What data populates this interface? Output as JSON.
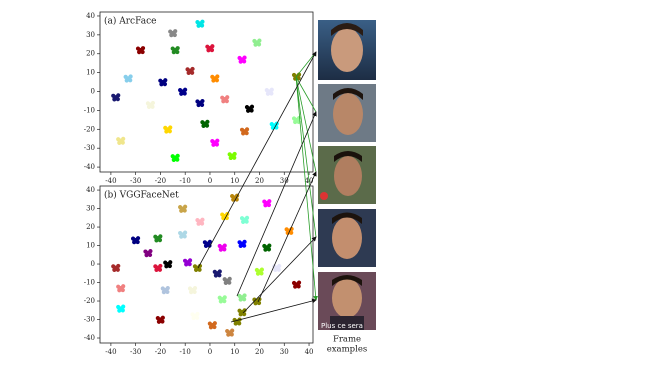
{
  "chart_data": [
    {
      "type": "scatter",
      "title": "(a) ArcFace",
      "x": [
        -15,
        -4,
        -28,
        -14,
        0,
        19,
        13,
        -8,
        -33,
        -19,
        2,
        -11,
        24,
        35,
        -38,
        -24,
        -4,
        6,
        16,
        35,
        -17,
        -2,
        14,
        26,
        -36,
        2,
        -14,
        9
      ],
      "values": [
        31,
        36,
        22,
        22,
        23,
        26,
        17,
        11,
        7,
        5,
        7,
        0,
        0,
        8,
        -3,
        -7,
        -6,
        -4,
        -9,
        -15,
        -20,
        -17,
        -21,
        -18,
        -26,
        -27,
        -35,
        -34
      ],
      "colors": [
        "#888888",
        "#00e5e5",
        "#8b0000",
        "#228b22",
        "#dc143c",
        "#90ee90",
        "#ff00ff",
        "#a52a2a",
        "#87ceeb",
        "#000080",
        "#ff8c00",
        "#00008b",
        "#e6e6fa",
        "#808000",
        "#191970",
        "#f5f5dc",
        "#000080",
        "#f08080",
        "#000000",
        "#98fb98",
        "#ffd700",
        "#006400",
        "#d2691e",
        "#00ffff",
        "#f0e68c",
        "#ff00ff",
        "#00ff00",
        "#7cfc00"
      ],
      "xlim": [
        -44.4,
        41.6
      ],
      "ylim": [
        -42.6,
        42.1
      ],
      "xticks": [
        -40,
        -30,
        -20,
        -10,
        0,
        10,
        20,
        30,
        40
      ],
      "yticks": [
        -40,
        -30,
        -20,
        -10,
        0,
        10,
        20,
        30,
        40
      ]
    },
    {
      "type": "scatter",
      "title": "(b) VGGFaceNet",
      "x": [
        -11,
        10,
        23,
        6,
        14,
        32,
        -4,
        -11,
        -30,
        -21,
        -25,
        -1,
        13,
        23,
        5,
        -17,
        -9,
        -5,
        20,
        27,
        3,
        -38,
        -21,
        35,
        7,
        -36,
        -18,
        -7,
        5,
        13,
        -36,
        -20,
        -6,
        1,
        8,
        19,
        13,
        11
      ],
      "values": [
        30,
        36,
        33,
        26,
        24,
        18,
        23,
        16,
        13,
        14,
        6,
        11,
        11,
        9,
        9,
        0,
        1,
        -2,
        -4,
        -2,
        -5,
        -2,
        -2,
        -11,
        -9,
        -13,
        -14,
        -14,
        -19,
        -18,
        -24,
        -30,
        -28,
        -33,
        -37,
        -20,
        -26,
        -31
      ],
      "colors": [
        "#c9a54a",
        "#b8860b",
        "#ff00ff",
        "#ffd700",
        "#7fffd4",
        "#ff8c00",
        "#ffb6c1",
        "#add8e6",
        "#000080",
        "#228b22",
        "#800080",
        "#00008b",
        "#0000ff",
        "#006400",
        "#ee00ee",
        "#000000",
        "#9400d3",
        "#808000",
        "#adff2f",
        "#e6e6fa",
        "#191970",
        "#a52a2a",
        "#dc143c",
        "#8b0000",
        "#808080",
        "#f08080",
        "#b0c4de",
        "#f5f5dc",
        "#98fb98",
        "#90ee90",
        "#00ffff",
        "#8b0000",
        "#fffff0",
        "#d2691e",
        "#cd853f",
        "#808000",
        "#808000",
        "#808000"
      ],
      "xlim": [
        -44.4,
        41.6
      ],
      "ylim": [
        -42.7,
        42.2
      ],
      "xticks": [
        -40,
        -30,
        -20,
        -10,
        0,
        10,
        20,
        30,
        40
      ],
      "yticks": [
        -40,
        -30,
        -20,
        -10,
        0,
        10,
        20,
        30,
        40
      ]
    }
  ],
  "frames": {
    "caption": [
      "Frame",
      "examples"
    ],
    "image_text": "Plus ce sera"
  }
}
